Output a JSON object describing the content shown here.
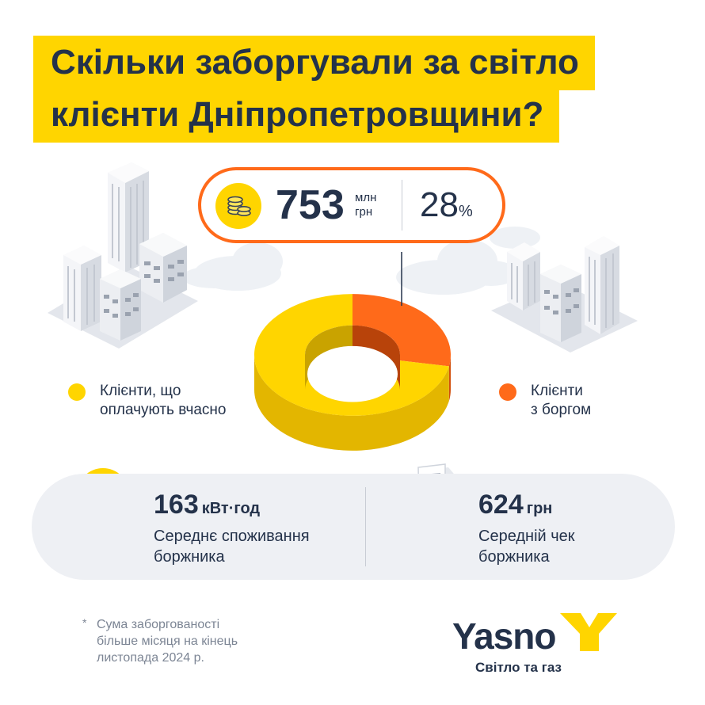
{
  "title": {
    "line1": "Скільки заборгували за світло",
    "line2": "клієнти Дніпропетровщини?"
  },
  "callout": {
    "amount": "753",
    "unit_line1": "млн",
    "unit_line2": "грн",
    "percent_value": "28",
    "percent_sign": "%",
    "icon": "coins-icon"
  },
  "chart_data": {
    "type": "pie",
    "style": "3d-donut",
    "categories": [
      "Клієнти, що оплачують вчасно",
      "Клієнти з боргом"
    ],
    "values": [
      72,
      28
    ],
    "colors": [
      "#ffd500",
      "#ff6a1a"
    ],
    "highlighted": "Клієнти з боргом",
    "title": "Скільки заборгували за світло клієнти Дніпропетровщини?"
  },
  "legend": {
    "paid": {
      "line1": "Клієнти, що",
      "line2": "оплачують вчасно",
      "color": "#ffd500"
    },
    "debt": {
      "line1": "Клієнти",
      "line2": "з боргом",
      "color": "#ff6a1a"
    }
  },
  "stats": {
    "consumption": {
      "value": "163",
      "unit": "кВт·год",
      "desc_line1": "Середнє споживання",
      "desc_line2": "боржника",
      "icon": "lightbulb-icon"
    },
    "check": {
      "value": "624",
      "unit": "грн",
      "desc_line1": "Середній чек",
      "desc_line2": "боржника",
      "icon": "receipt-icon"
    }
  },
  "footnote": {
    "star": "*",
    "line1": "Сума заборгованості",
    "line2": "більше місяця на кінець",
    "line3": "листопада 2024 р."
  },
  "brand": {
    "name": "Yasno",
    "tagline": "Світло та газ",
    "accent": "#ffd500"
  },
  "colors": {
    "navy": "#24324a",
    "yellow": "#ffd500",
    "orange": "#ff6a1a",
    "panel": "#eef0f4"
  }
}
